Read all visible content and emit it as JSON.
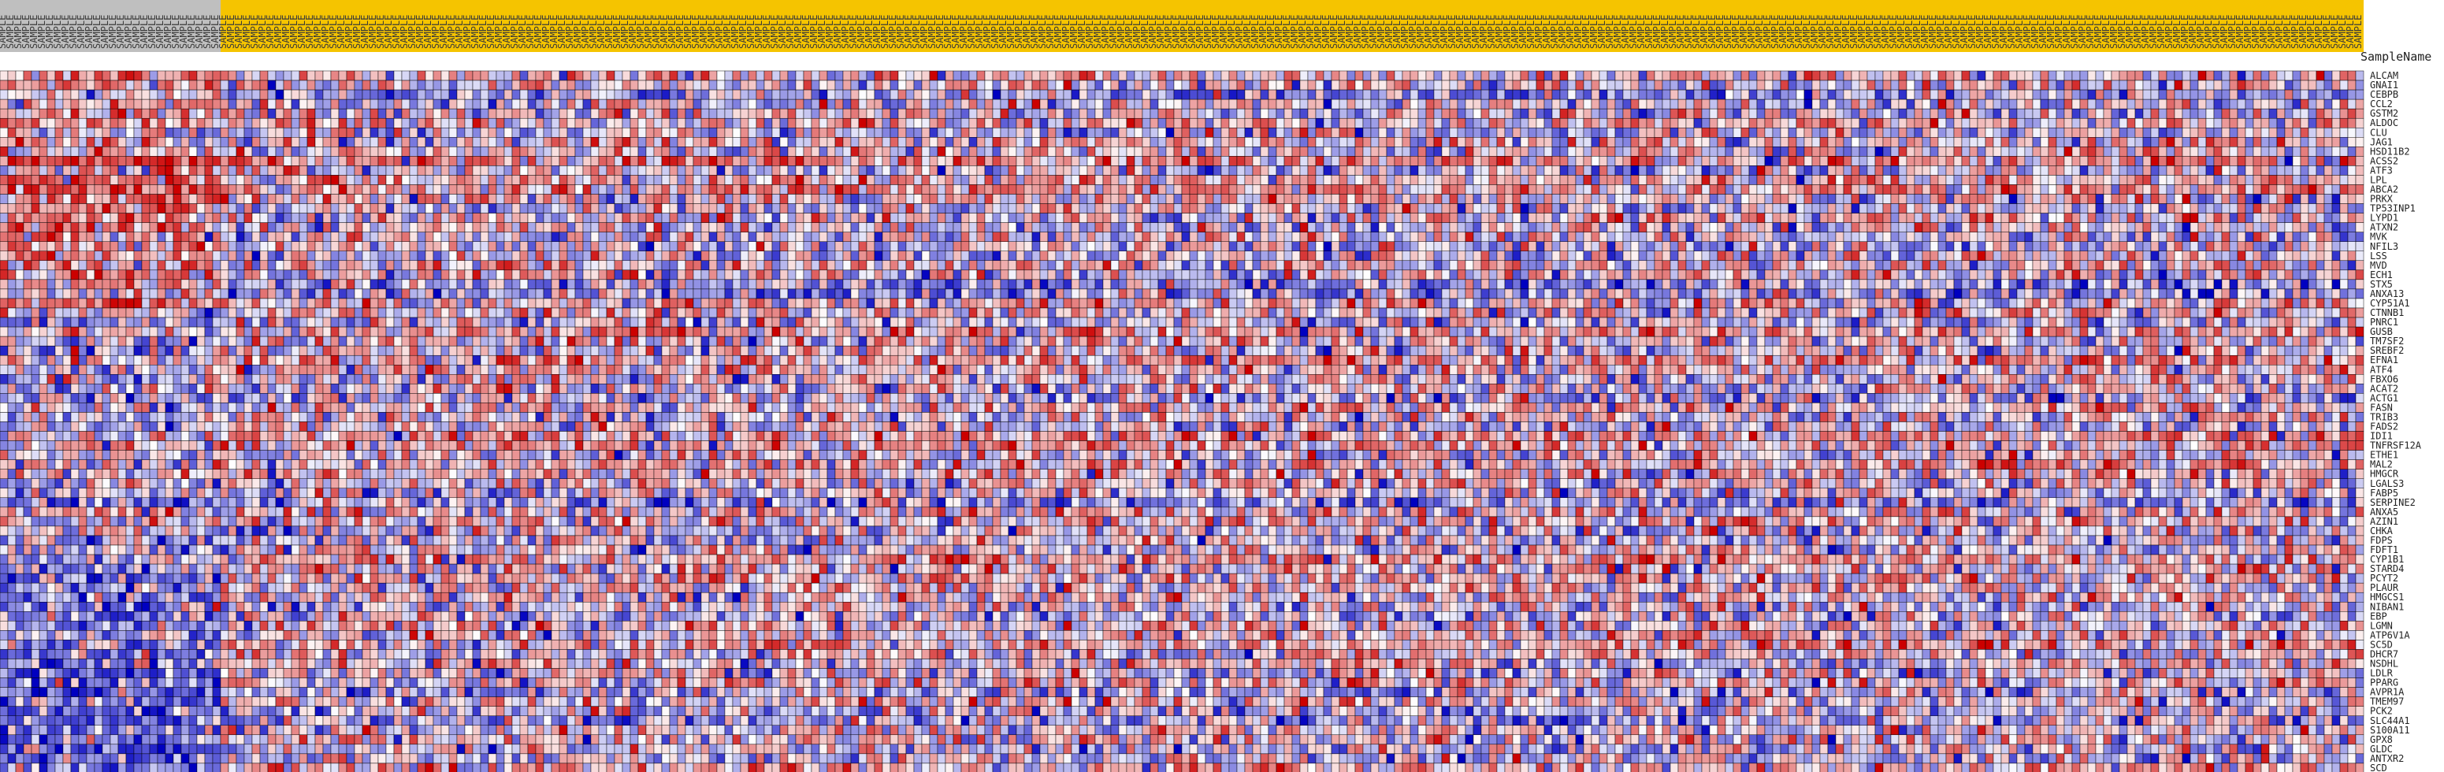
{
  "chart_data": {
    "type": "heatmap",
    "column_header_label": "SampleName",
    "column_groups": [
      {
        "count": 28,
        "color": "#bfbfbf"
      },
      {
        "count": 272,
        "color": "#f5c400"
      }
    ],
    "column_label_text": "SAMPLE",
    "rows": [
      "ALCAM",
      "GNAI1",
      "CEBPB",
      "CCL2",
      "GSTM2",
      "ALDOC",
      "CLU",
      "JAG1",
      "HSD11B2",
      "ACSS2",
      "ATF3",
      "LPL",
      "ABCA2",
      "PRKX",
      "TP53INP1",
      "LYPD1",
      "ATXN2",
      "MVK",
      "NFIL3",
      "LSS",
      "MVD",
      "ECH1",
      "STX5",
      "ANXA13",
      "CYP51A1",
      "CTNNB1",
      "PNRC1",
      "GUSB",
      "TM7SF2",
      "SREBF2",
      "EFNA1",
      "ATF4",
      "FBXO6",
      "ACAT2",
      "ACTG1",
      "FASN",
      "TRIB3",
      "FADS2",
      "IDI1",
      "TNFRSF12A",
      "ETHE1",
      "MAL2",
      "HMGCR",
      "LGALS3",
      "FABP5",
      "SERPINE2",
      "ANXA5",
      "AZIN1",
      "CHKA",
      "FDPS",
      "FDFT1",
      "CYP1B1",
      "STARD4",
      "PCYT2",
      "PLAUR",
      "HMGCS1",
      "NIBAN1",
      "EBP",
      "LGMN",
      "ATP6V1A",
      "SC5D",
      "DHCR7",
      "NSDHL",
      "LDLR",
      "PPARG",
      "AVPR1A",
      "TMEM97",
      "PCK2",
      "SLC44A1",
      "S100A11",
      "GPX8",
      "GLDC",
      "ANTXR2",
      "SCD"
    ],
    "color_scale": {
      "low": "#0000c0",
      "mid": "#ffffff",
      "high": "#cc0000",
      "min": -3,
      "max": 3
    },
    "seed": 20240611,
    "legend": "none"
  }
}
